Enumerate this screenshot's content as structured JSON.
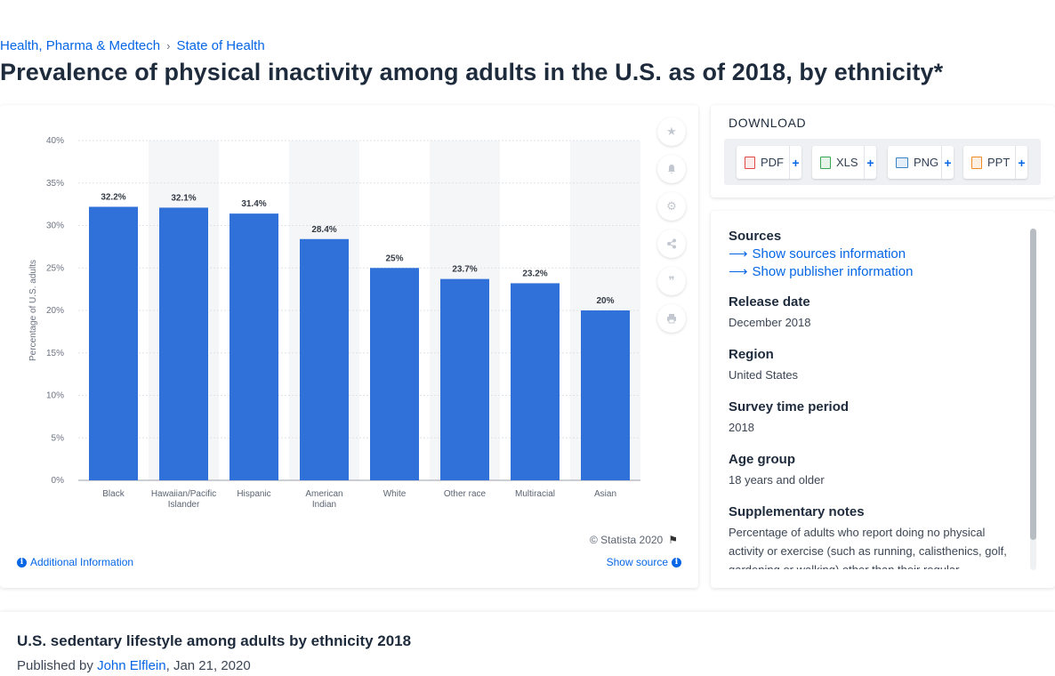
{
  "breadcrumb": {
    "items": [
      "Health, Pharma & Medtech",
      "State of Health"
    ],
    "separator": "›"
  },
  "page_title": "Prevalence of physical inactivity among adults in the U.S. as of 2018, by ethnicity*",
  "chart": {
    "copyright": "© Statista 2020",
    "additional_info": "Additional Information",
    "show_source": "Show source",
    "tools": [
      "star-icon",
      "bell-icon",
      "gear-icon",
      "share-icon",
      "quote-icon",
      "print-icon"
    ]
  },
  "chart_data": {
    "type": "bar",
    "categories": [
      "Black",
      "Hawaiian/Pacific Islander",
      "Hispanic",
      "American Indian",
      "White",
      "Other race",
      "Multiracial",
      "Asian"
    ],
    "category_lines": [
      [
        "Black"
      ],
      [
        "Hawaiian/Pacific",
        "Islander"
      ],
      [
        "Hispanic"
      ],
      [
        "American",
        "Indian"
      ],
      [
        "White"
      ],
      [
        "Other race"
      ],
      [
        "Multiracial"
      ],
      [
        "Asian"
      ]
    ],
    "values": [
      32.2,
      32.1,
      31.4,
      28.4,
      25,
      23.7,
      23.2,
      20
    ],
    "data_labels": [
      "32.2%",
      "32.1%",
      "31.4%",
      "28.4%",
      "25%",
      "23.7%",
      "23.2%",
      "20%"
    ],
    "ylabel": "Percentage of U.S. adults",
    "ylim": [
      0,
      40
    ],
    "yticks": [
      0,
      5,
      10,
      15,
      20,
      25,
      30,
      35,
      40
    ],
    "ytick_labels": [
      "0%",
      "5%",
      "10%",
      "15%",
      "20%",
      "25%",
      "30%",
      "35%",
      "40%"
    ],
    "grid": true,
    "bar_color": "#3071d9"
  },
  "download": {
    "title": "DOWNLOAD",
    "buttons": [
      {
        "label": "PDF",
        "icon": "pdf-icon",
        "color": "#e04848"
      },
      {
        "label": "XLS",
        "icon": "xls-icon",
        "color": "#3aa655"
      },
      {
        "label": "PNG",
        "icon": "png-icon",
        "color": "#3b82c4"
      },
      {
        "label": "PPT",
        "icon": "ppt-icon",
        "color": "#f08a24"
      }
    ],
    "plus": "+"
  },
  "meta": {
    "sources_label": "Sources",
    "show_sources": "Show sources information",
    "show_publisher": "Show publisher information",
    "release_date_label": "Release date",
    "release_date": "December 2018",
    "region_label": "Region",
    "region": "United States",
    "survey_period_label": "Survey time period",
    "survey_period": "2018",
    "age_group_label": "Age group",
    "age_group": "18 years and older",
    "supplementary_label": "Supplementary notes",
    "supplementary": "Percentage of adults who report doing no physical activity or exercise (such as running, calisthenics, golf, gardening or walking) other than their regular"
  },
  "related": {
    "title": "U.S. sedentary lifestyle among adults by ethnicity 2018",
    "published_by": "Published by ",
    "author": "John Elflein",
    "date": ", Jan 21, 2020"
  }
}
